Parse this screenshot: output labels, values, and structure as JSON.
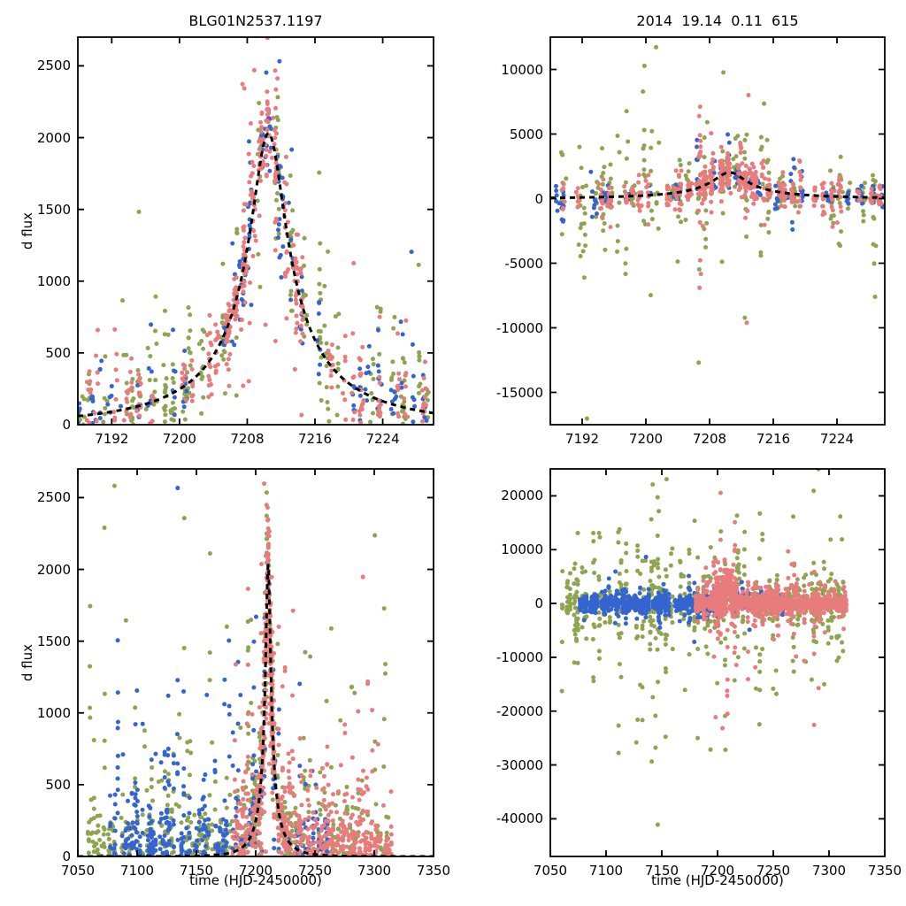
{
  "figure": {
    "background": "#ffffff",
    "text_color": "#000000",
    "axis_color": "#000000",
    "model_curve_color": "#000000",
    "model_curve_style": "dashed"
  },
  "series_colors": {
    "blue": "#3465cf",
    "green": "#8ea44e",
    "red": "#e87c7c"
  },
  "chart_data": [
    {
      "id": "top-left-flux-zoom",
      "type": "scatter",
      "title": "BLG01N2537.1197",
      "xlabel": "",
      "ylabel": "d flux",
      "xlim": [
        7188,
        7230
      ],
      "ylim": [
        0,
        2700
      ],
      "xticks": [
        7192,
        7200,
        7208,
        7216,
        7224
      ],
      "yticks": [
        0,
        500,
        1000,
        1500,
        2000,
        2500
      ],
      "grid": false,
      "legend": "none",
      "model": {
        "type": "paczynski",
        "t0": 7210.5,
        "tE": 19.14,
        "u0": 0.11,
        "peak": 2030,
        "baseline": 0
      },
      "series": [
        {
          "name": "site-green",
          "color": "green",
          "seed": 11,
          "sigma": 260,
          "night_spread": 0.5,
          "outlier_frac": 0.06,
          "outlier_mult": 3.5,
          "model_scale": 1,
          "windows": [
            {
              "t0": 7188,
              "t1": 7229.5,
              "presence": 0.75,
              "ppn": 12
            }
          ]
        },
        {
          "name": "site-blue",
          "color": "blue",
          "seed": 33,
          "sigma": 175,
          "night_spread": 0.5,
          "outlier_frac": 0.05,
          "outlier_mult": 3,
          "model_scale": 1,
          "windows": [
            {
              "t0": 7188,
              "t1": 7229.5,
              "presence": 0.6,
              "ppn": 7
            },
            {
              "t0": 7204,
              "t1": 7212,
              "presence": 0.9,
              "ppn": 7
            }
          ]
        },
        {
          "name": "site-red",
          "color": "red",
          "seed": 22,
          "sigma": 205,
          "night_spread": 0.45,
          "outlier_frac": 0.05,
          "outlier_mult": 3,
          "model_scale": 1,
          "windows": [
            {
              "t0": 7189,
              "t1": 7229.5,
              "presence": 0.8,
              "ppn": 12
            },
            {
              "t0": 7205,
              "t1": 7213,
              "presence": 1,
              "ppn": 16
            }
          ]
        }
      ]
    },
    {
      "id": "top-right-residual-zoom",
      "type": "scatter",
      "title": "2014  19.14  0.11  615",
      "xlabel": "",
      "ylabel": "",
      "xlim": [
        7188,
        7230
      ],
      "ylim": [
        -17500,
        12500
      ],
      "xticks": [
        7192,
        7200,
        7208,
        7216,
        7224
      ],
      "yticks": [
        -15000,
        -10000,
        -5000,
        0,
        5000,
        10000
      ],
      "grid": false,
      "legend": "none",
      "model": {
        "type": "paczynski",
        "t0": 7210.5,
        "tE": 19.14,
        "u0": 0.11,
        "peak": 2030,
        "baseline": 0
      },
      "series": [
        {
          "name": "site-green",
          "color": "green",
          "seed": 44,
          "sigma": 1500,
          "night_spread": 0.7,
          "outlier_frac": 0.1,
          "outlier_mult": 4,
          "model_scale": 1,
          "windows": [
            {
              "t0": 7188,
              "t1": 7229.5,
              "presence": 0.75,
              "ppn": 10
            }
          ]
        },
        {
          "name": "site-blue",
          "color": "blue",
          "seed": 66,
          "sigma": 520,
          "night_spread": 0.5,
          "outlier_frac": 0.05,
          "outlier_mult": 3,
          "model_scale": 1,
          "windows": [
            {
              "t0": 7188,
              "t1": 7229.5,
              "presence": 0.6,
              "ppn": 6
            }
          ]
        },
        {
          "name": "site-red",
          "color": "red",
          "seed": 55,
          "sigma": 620,
          "night_spread": 0.45,
          "outlier_frac": 0.06,
          "outlier_mult": 3,
          "model_scale": 1,
          "windows": [
            {
              "t0": 7189,
              "t1": 7229.5,
              "presence": 0.8,
              "ppn": 10
            },
            {
              "t0": 7205,
              "t1": 7213,
              "presence": 1,
              "ppn": 16,
              "sigma": 1100
            }
          ]
        }
      ]
    },
    {
      "id": "bottom-left-flux-full",
      "type": "scatter",
      "title": "",
      "xlabel": "time (HJD-2450000)",
      "ylabel": "d flux",
      "xlim": [
        7050,
        7350
      ],
      "ylim": [
        0,
        2700
      ],
      "xticks": [
        7050,
        7100,
        7150,
        7200,
        7250,
        7300,
        7350
      ],
      "yticks": [
        0,
        500,
        1000,
        1500,
        2000,
        2500
      ],
      "grid": false,
      "legend": "none",
      "model": {
        "type": "paczynski",
        "t0": 7210.5,
        "tE": 19.14,
        "u0": 0.11,
        "peak": 2030,
        "baseline": 0
      },
      "series": [
        {
          "name": "site-green",
          "color": "green",
          "seed": 77,
          "sigma": 280,
          "night_spread": 0.7,
          "outlier_frac": 0.06,
          "outlier_mult": 3.5,
          "model_scale": 1,
          "windows": [
            {
              "t0": 7058,
              "t1": 7312,
              "presence": 0.5,
              "ppn": 7
            }
          ]
        },
        {
          "name": "site-blue",
          "color": "blue",
          "seed": 88,
          "sigma": 235,
          "night_spread": 0.8,
          "outlier_frac": 0.05,
          "outlier_mult": 3,
          "model_scale": 1,
          "windows": [
            {
              "t0": 7075,
              "t1": 7198,
              "presence": 0.6,
              "ppn": 9
            },
            {
              "t0": 7198,
              "t1": 7262,
              "presence": 0.45,
              "ppn": 5
            }
          ]
        },
        {
          "name": "site-red",
          "color": "red",
          "seed": 99,
          "sigma": 235,
          "night_spread": 0.7,
          "outlier_frac": 0.06,
          "outlier_mult": 3,
          "model_scale": 1,
          "windows": [
            {
              "t0": 7180,
              "t1": 7315,
              "presence": 0.75,
              "ppn": 10
            },
            {
              "t0": 7203,
              "t1": 7215,
              "presence": 1,
              "ppn": 14
            }
          ]
        }
      ]
    },
    {
      "id": "bottom-right-residual-full",
      "type": "scatter",
      "title": "",
      "xlabel": "time (HJD-2450000)",
      "ylabel": "",
      "xlim": [
        7050,
        7350
      ],
      "ylim": [
        -47000,
        25000
      ],
      "xticks": [
        7050,
        7100,
        7150,
        7200,
        7250,
        7300,
        7350
      ],
      "yticks": [
        -40000,
        -30000,
        -20000,
        -10000,
        0,
        10000,
        20000
      ],
      "grid": false,
      "legend": "none",
      "draw_model": false,
      "model": {
        "type": "paczynski",
        "t0": 7210.5,
        "tE": 19.14,
        "u0": 0.11,
        "peak": 2030,
        "baseline": 0
      },
      "series": [
        {
          "name": "site-green",
          "color": "green",
          "seed": 111,
          "sigma": 2800,
          "night_spread": 0.8,
          "outlier_frac": 0.07,
          "outlier_mult": 4.5,
          "model_scale": 2,
          "windows": [
            {
              "t0": 7058,
              "t1": 7312,
              "presence": 0.5,
              "ppn": 7
            }
          ]
        },
        {
          "name": "site-blue",
          "color": "blue",
          "seed": 122,
          "sigma": 700,
          "night_spread": 0.5,
          "outlier_frac": 0.05,
          "outlier_mult": 3,
          "model_scale": 1,
          "windows": [
            {
              "t0": 7075,
              "t1": 7198,
              "presence": 0.65,
              "ppn": 10
            },
            {
              "t0": 7198,
              "t1": 7262,
              "presence": 0.4,
              "ppn": 5
            }
          ]
        },
        {
          "name": "site-red",
          "color": "red",
          "seed": 133,
          "sigma": 950,
          "night_spread": 0.7,
          "outlier_frac": 0.06,
          "outlier_mult": 3.5,
          "model_scale": 2,
          "windows": [
            {
              "t0": 7180,
              "t1": 7315,
              "presence": 0.8,
              "ppn": 10
            },
            {
              "t0": 7196,
              "t1": 7216,
              "presence": 1,
              "ppn": 12,
              "sigma": 1900
            }
          ]
        }
      ]
    }
  ]
}
